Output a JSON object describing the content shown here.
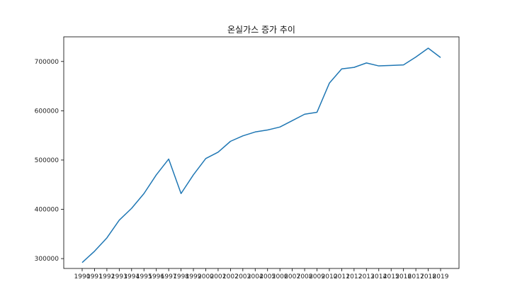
{
  "chart_data": {
    "type": "line",
    "title": "온실가스 증가 추이",
    "xlabel": "",
    "ylabel": "",
    "x": [
      "1990",
      "1991",
      "1992",
      "1993",
      "1994",
      "1995",
      "1996",
      "1997",
      "1998",
      "1999",
      "2000",
      "2001",
      "2002",
      "2003",
      "2004",
      "2005",
      "2006",
      "2007",
      "2008",
      "2009",
      "2010",
      "2011",
      "2012",
      "2013",
      "2014",
      "2015",
      "2016",
      "2017",
      "2018",
      "2019"
    ],
    "series": [
      {
        "values": [
          292000,
          315000,
          342000,
          378000,
          402000,
          432000,
          470000,
          502000,
          432000,
          470000,
          503000,
          516000,
          538000,
          549000,
          557000,
          561000,
          567000,
          580000,
          593000,
          597000,
          656000,
          685000,
          688000,
          697000,
          691000,
          692000,
          693000,
          709000,
          727000,
          708000
        ],
        "color": "#1f77b4"
      }
    ],
    "yticks": [
      300000,
      400000,
      500000,
      600000,
      700000
    ],
    "ylim": [
      280000,
      750000
    ],
    "grid": false,
    "legend": "none"
  }
}
